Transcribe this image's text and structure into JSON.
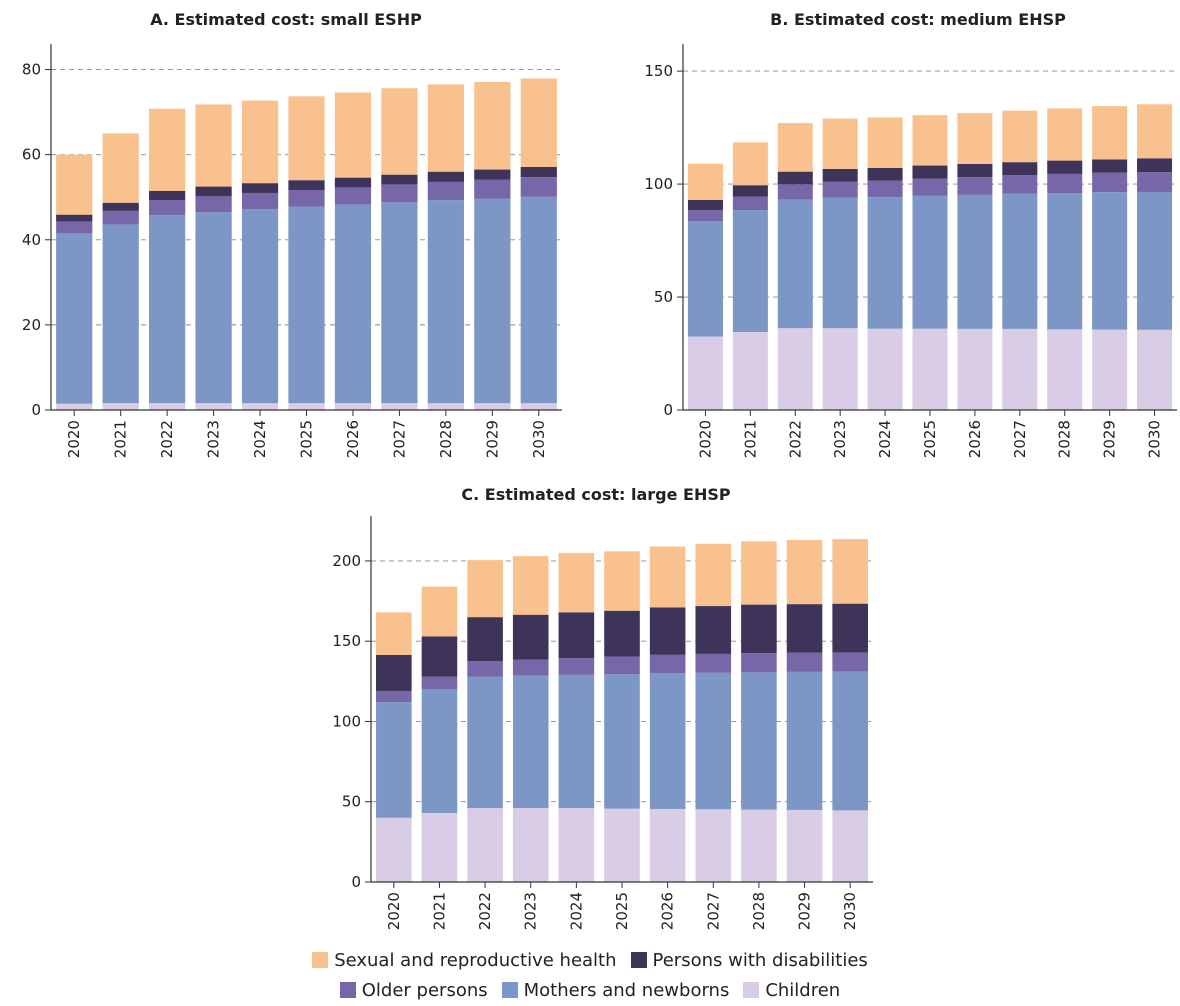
{
  "chart_data": [
    {
      "type": "bar",
      "stacked": true,
      "title": "A. Estimated cost: small ESHP",
      "categories": [
        "2020",
        "2021",
        "2022",
        "2023",
        "2024",
        "2025",
        "2026",
        "2027",
        "2028",
        "2029",
        "2030"
      ],
      "ylim": [
        0,
        80
      ],
      "yticks": [
        "0",
        "20",
        "40",
        "60",
        "80"
      ],
      "grid": "dashed horizontal",
      "series": [
        {
          "name": "Children",
          "values": [
            1.5,
            1.6,
            1.6,
            1.6,
            1.6,
            1.6,
            1.6,
            1.6,
            1.6,
            1.6,
            1.6
          ]
        },
        {
          "name": "Mothers and newborns",
          "values": [
            40,
            42,
            44.2,
            44.9,
            45.6,
            46.2,
            46.7,
            47.2,
            47.7,
            48.1,
            48.5
          ]
        },
        {
          "name": "Older persons",
          "values": [
            2.8,
            3.2,
            3.5,
            3.7,
            3.8,
            3.9,
            4.0,
            4.2,
            4.3,
            4.4,
            4.6
          ]
        },
        {
          "name": "Persons with disabilities",
          "values": [
            1.6,
            1.9,
            2.2,
            2.3,
            2.3,
            2.3,
            2.3,
            2.3,
            2.4,
            2.4,
            2.4
          ]
        },
        {
          "name": "Sexual and reproductive health",
          "values": [
            14.1,
            16.3,
            19.3,
            19.3,
            19.4,
            19.7,
            20,
            20.3,
            20.5,
            20.6,
            20.8
          ]
        }
      ]
    },
    {
      "type": "bar",
      "stacked": true,
      "title": "B. Estimated cost: medium EHSP",
      "categories": [
        "2020",
        "2021",
        "2022",
        "2023",
        "2024",
        "2025",
        "2026",
        "2027",
        "2028",
        "2029",
        "2030"
      ],
      "ylim": [
        0,
        150
      ],
      "yticks": [
        "0",
        "50",
        "100",
        "150"
      ],
      "grid": "dashed horizontal",
      "series": [
        {
          "name": "Children",
          "values": [
            32.5,
            34.5,
            36.2,
            36.2,
            36,
            36,
            35.9,
            35.9,
            35.7,
            35.6,
            35.5
          ]
        },
        {
          "name": "Mothers and newborns",
          "values": [
            51,
            54,
            57,
            57.8,
            58.2,
            58.8,
            59.3,
            59.8,
            60.3,
            60.8,
            61
          ]
        },
        {
          "name": "Older persons",
          "values": [
            5,
            6,
            6.7,
            7,
            7.3,
            7.6,
            7.9,
            8.2,
            8.5,
            8.6,
            8.8
          ]
        },
        {
          "name": "Persons with disabilities",
          "values": [
            4.5,
            5,
            5.6,
            5.7,
            5.7,
            5.8,
            5.8,
            5.8,
            5.9,
            5.9,
            6.1
          ]
        },
        {
          "name": "Sexual and reproductive health",
          "values": [
            16,
            19,
            21.5,
            22.3,
            22.3,
            22.3,
            22.6,
            22.8,
            23.1,
            23.6,
            23.9
          ]
        }
      ]
    },
    {
      "type": "bar",
      "stacked": true,
      "title": "C. Estimated cost: large EHSP",
      "categories": [
        "2020",
        "2021",
        "2022",
        "2023",
        "2024",
        "2025",
        "2026",
        "2027",
        "2028",
        "2029",
        "2030"
      ],
      "ylim": [
        0,
        200
      ],
      "yticks": [
        "0",
        "50",
        "100",
        "150",
        "200"
      ],
      "grid": "dashed horizontal",
      "series": [
        {
          "name": "Children",
          "values": [
            40,
            43,
            46,
            46,
            46,
            45.7,
            45.5,
            45.3,
            45.1,
            44.9,
            44.6
          ]
        },
        {
          "name": "Mothers and newborns",
          "values": [
            72,
            77,
            82,
            82.5,
            83,
            83.8,
            84.5,
            85,
            85.5,
            86,
            86.4
          ]
        },
        {
          "name": "Older persons",
          "values": [
            7,
            8,
            9.5,
            10,
            10.5,
            11,
            11.5,
            11.8,
            12,
            12,
            12
          ]
        },
        {
          "name": "Persons with disabilities",
          "values": [
            22.5,
            25,
            27.5,
            28,
            28.5,
            28.5,
            29.5,
            29.8,
            30.2,
            30.2,
            30.4
          ]
        },
        {
          "name": "Sexual and reproductive health",
          "values": [
            26.5,
            31,
            35.5,
            36.5,
            37,
            37,
            38,
            38.8,
            39.4,
            40,
            40.2
          ]
        }
      ]
    }
  ],
  "colors": {
    "Sexual and reproductive health": "#f9c18d",
    "Persons with disabilities": "#3e3359",
    "Older persons": "#7867a8",
    "Mothers and newborns": "#7c97c6",
    "Children": "#d9cde6"
  },
  "legend": {
    "row1": [
      "Sexual and reproductive health",
      "Persons with disabilities"
    ],
    "row2": [
      "Older persons",
      "Mothers and newborns",
      "Children"
    ]
  }
}
